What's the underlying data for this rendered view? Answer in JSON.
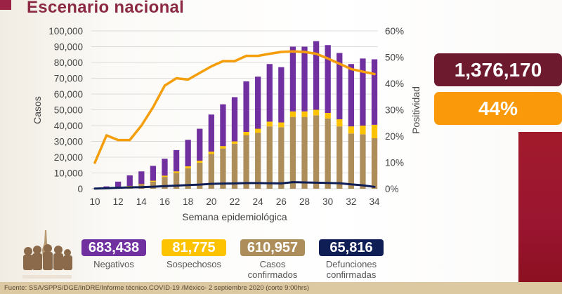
{
  "header": {
    "title": "Escenario nacional"
  },
  "summary": {
    "total": "1,376,170",
    "positivity": "44%"
  },
  "stats": [
    {
      "value": "683,438",
      "label_lines": [
        "Negativos"
      ],
      "color": "#7030a0"
    },
    {
      "value": "81,775",
      "label_lines": [
        "Sospechosos"
      ],
      "color": "#fdc300"
    },
    {
      "value": "610,957",
      "label_lines": [
        "Casos",
        "confirmados"
      ],
      "color": "#ad8e5a"
    },
    {
      "value": "65,816",
      "label_lines": [
        "Defunciones",
        "confirmadas"
      ],
      "color": "#0f1f55"
    }
  ],
  "footer": {
    "source": "Fuente: SSA/SPPS/DGE/InDRE/Informe técnico.COVID-19 /México- 2 septiembre 2020 (corte 9:00hrs)"
  },
  "chart_data": {
    "type": "bar",
    "stacked": true,
    "xlabel": "Semana epidemiológica",
    "ylabel": "Casos",
    "y2label": "Positividad",
    "ylim": [
      0,
      100000
    ],
    "y2lim": [
      0,
      60
    ],
    "yticks": [
      "0",
      "10,000",
      "20,000",
      "30,000",
      "40,000",
      "50,000",
      "60,000",
      "70,000",
      "80,000",
      "90,000",
      "100,000"
    ],
    "y2ticks": [
      "0%",
      "10%",
      "20%",
      "30%",
      "40%",
      "50%",
      "60%"
    ],
    "xticks": [
      "10",
      "12",
      "14",
      "16",
      "18",
      "20",
      "22",
      "24",
      "26",
      "28",
      "30",
      "32",
      "34"
    ],
    "grid": true,
    "categories": [
      10,
      11,
      12,
      13,
      14,
      15,
      16,
      17,
      18,
      19,
      20,
      21,
      22,
      23,
      24,
      25,
      26,
      27,
      28,
      29,
      30,
      31,
      32,
      33,
      34
    ],
    "series": [
      {
        "name": "Casos confirmados",
        "kind": "bar",
        "color": "#ad8e5a",
        "values": [
          50,
          300,
          800,
          1500,
          2500,
          4500,
          7500,
          10000,
          13000,
          16500,
          22000,
          25500,
          28500,
          34000,
          35500,
          39500,
          39000,
          45500,
          45500,
          46500,
          44500,
          39500,
          35000,
          34500,
          32000
        ]
      },
      {
        "name": "Sospechosos",
        "kind": "bar",
        "color": "#fdc300",
        "values": [
          0,
          100,
          200,
          300,
          400,
          600,
          800,
          1000,
          1200,
          1300,
          1500,
          1500,
          1500,
          2000,
          2500,
          3000,
          3000,
          3500,
          3500,
          3500,
          3500,
          4500,
          4500,
          5500,
          8500
        ]
      },
      {
        "name": "Negativos",
        "kind": "bar",
        "color": "#7030a0",
        "values": [
          50,
          1100,
          3500,
          6700,
          8100,
          9400,
          10700,
          13500,
          16800,
          20200,
          23500,
          26500,
          28000,
          32000,
          33000,
          36500,
          35000,
          41000,
          41000,
          43500,
          43000,
          42000,
          39500,
          42500,
          41500
        ]
      },
      {
        "name": "Positividad",
        "kind": "line",
        "axis": "y2",
        "color": "#f59e0b",
        "values": [
          9.9,
          20.3,
          18.5,
          18.5,
          24.0,
          31.0,
          39.2,
          42.0,
          41.5,
          44.0,
          46.5,
          48.5,
          48.5,
          50.5,
          50.5,
          51.3,
          52.0,
          52.2,
          52.0,
          51.3,
          49.5,
          47.5,
          45.5,
          44.5,
          43.6
        ]
      },
      {
        "name": "Defunciones",
        "kind": "line",
        "axis": "y",
        "color": "#0f1f55",
        "values": [
          100,
          300,
          600,
          900,
          1000,
          1300,
          1700,
          2000,
          2300,
          2600,
          3100,
          3300,
          3400,
          3600,
          3600,
          3500,
          3400,
          4200,
          4000,
          3800,
          3700,
          3500,
          2800,
          2200,
          1200
        ]
      }
    ]
  }
}
